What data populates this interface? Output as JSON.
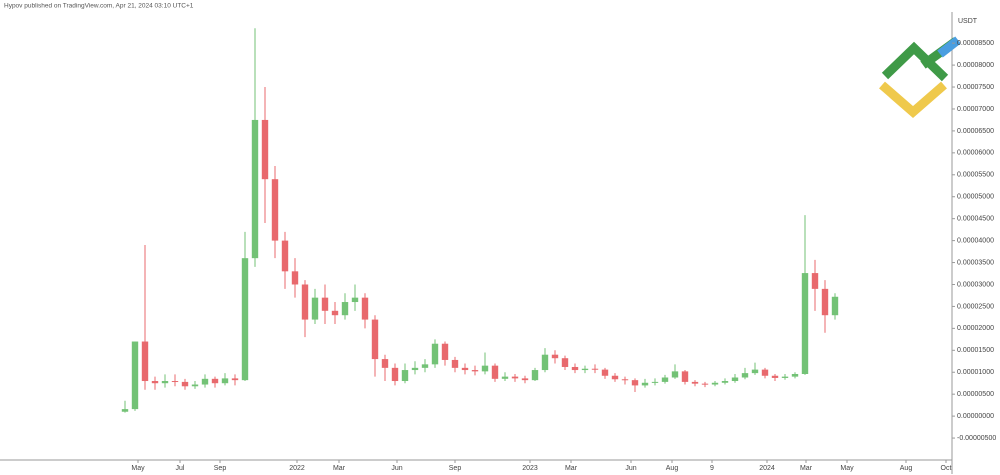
{
  "header": "Hypov published on TradingView.com, Apr 21, 2024 03:10 UTC+1",
  "chart_data": {
    "type": "candlestick",
    "unit_label": "USDT",
    "up_color": "#73c276",
    "down_color": "#e8696d",
    "ylim": [
      -1e-05,
      9.21e-05
    ],
    "yticks": [
      {
        "value": -5e-06,
        "label": "-0.00000500"
      },
      {
        "value": 0,
        "label": "0.00000000"
      },
      {
        "value": 5e-06,
        "label": "0.00000500"
      },
      {
        "value": 1e-05,
        "label": "0.00001000"
      },
      {
        "value": 1.5e-05,
        "label": "0.00001500"
      },
      {
        "value": 2e-05,
        "label": "0.00002000"
      },
      {
        "value": 2.5e-05,
        "label": "0.00002500"
      },
      {
        "value": 3e-05,
        "label": "0.00003000"
      },
      {
        "value": 3.5e-05,
        "label": "0.00003500"
      },
      {
        "value": 4e-05,
        "label": "0.00004000"
      },
      {
        "value": 4.5e-05,
        "label": "0.00004500"
      },
      {
        "value": 5e-05,
        "label": "0.00005000"
      },
      {
        "value": 5.5e-05,
        "label": "0.00005500"
      },
      {
        "value": 6e-05,
        "label": "0.00006000"
      },
      {
        "value": 6.5e-05,
        "label": "0.00006500"
      },
      {
        "value": 7e-05,
        "label": "0.00007000"
      },
      {
        "value": 7.5e-05,
        "label": "0.00007500"
      },
      {
        "value": 8e-05,
        "label": "0.00008000"
      },
      {
        "value": 8.5e-05,
        "label": "0.00008500"
      }
    ],
    "xlim": [
      -12.5,
      82.7
    ],
    "xticks": [
      {
        "value": 1.3,
        "label": "May"
      },
      {
        "value": 5.5,
        "label": "Jul"
      },
      {
        "value": 9.5,
        "label": "Sep"
      },
      {
        "value": 17.2,
        "label": "2022"
      },
      {
        "value": 21.4,
        "label": "Mar"
      },
      {
        "value": 27.2,
        "label": "Jun"
      },
      {
        "value": 33,
        "label": "Sep"
      },
      {
        "value": 40.5,
        "label": "2023"
      },
      {
        "value": 44.6,
        "label": "Mar"
      },
      {
        "value": 50.6,
        "label": "Jun"
      },
      {
        "value": 54.7,
        "label": "Aug"
      },
      {
        "value": 58.7,
        "label": "9"
      },
      {
        "value": 64.2,
        "label": "2024"
      },
      {
        "value": 68.1,
        "label": "Mar"
      },
      {
        "value": 72.2,
        "label": "May"
      },
      {
        "value": 78.1,
        "label": "Aug"
      },
      {
        "value": 82.1,
        "label": "Oct"
      }
    ],
    "open": [
      1e-06,
      1.6e-06,
      1.7e-05,
      8e-06,
      7.5e-06,
      8e-06,
      7.8e-06,
      6.8e-06,
      7.2e-06,
      8.5e-06,
      7.5e-06,
      8.6e-06,
      8.2e-06,
      3.6e-05,
      6.75e-05,
      5.4e-05,
      4e-05,
      3.3e-05,
      3e-05,
      2.2e-05,
      2.7e-05,
      2.4e-05,
      2.3e-05,
      2.6e-05,
      2.7e-05,
      2.2e-05,
      1.3e-05,
      1.1e-05,
      8e-06,
      1.05e-05,
      1.1e-05,
      1.18e-05,
      1.65e-05,
      1.28e-05,
      1.1e-05,
      1.05e-05,
      1.02e-05,
      1.15e-05,
      8.5e-06,
      9e-06,
      8.6e-06,
      8.2e-06,
      1.05e-05,
      1.4e-05,
      1.32e-05,
      1.12e-05,
      1.05e-05,
      1.08e-05,
      1.06e-05,
      9.2e-06,
      8.4e-06,
      8.2e-06,
      7e-06,
      7.6e-06,
      7.8e-06,
      8.8e-06,
      1.02e-05,
      7.8e-06,
      7.4e-06,
      7.2e-06,
      7.6e-06,
      8e-06,
      8.8e-06,
      9.8e-06,
      1.06e-05,
      9.2e-06,
      8.7e-06,
      9e-06,
      9.6e-06,
      3.26e-05,
      2.9e-05,
      2.3e-05
    ],
    "high": [
      3.5e-06,
      1.7e-05,
      3.9e-05,
      9e-06,
      9.5e-06,
      9.5e-06,
      8.5e-06,
      8e-06,
      9.5e-06,
      9e-06,
      9.8e-06,
      9.5e-06,
      4.2e-05,
      8.84e-05,
      7.5e-05,
      5.7e-05,
      4.2e-05,
      3.6e-05,
      3.1e-05,
      2.9e-05,
      3e-05,
      2.6e-05,
      2.8e-05,
      3e-05,
      2.8e-05,
      2.3e-05,
      1.4e-05,
      1.2e-05,
      1.2e-05,
      1.25e-05,
      1.3e-05,
      1.75e-05,
      1.7e-05,
      1.35e-05,
      1.2e-05,
      1.15e-05,
      1.45e-05,
      1.2e-05,
      1e-05,
      9.6e-06,
      9.2e-06,
      1.1e-05,
      1.55e-05,
      1.5e-05,
      1.38e-05,
      1.2e-05,
      1.15e-05,
      1.18e-05,
      1.1e-05,
      9.8e-06,
      9e-06,
      8.6e-06,
      8.5e-06,
      8.6e-06,
      9.4e-06,
      1.18e-05,
      1.05e-05,
      8.2e-06,
      7.8e-06,
      8e-06,
      8.6e-06,
      9.6e-06,
      1.1e-05,
      1.22e-05,
      1.1e-05,
      9.6e-06,
      9.6e-06,
      1e-05,
      4.58e-05,
      3.56e-05,
      3.1e-05,
      2.8e-05
    ],
    "low": [
      8e-07,
      1.2e-06,
      6e-06,
      6e-06,
      6.5e-06,
      6.8e-06,
      6e-06,
      6.2e-06,
      6.5e-06,
      6.5e-06,
      7e-06,
      7e-06,
      8e-06,
      3.4e-05,
      4.4e-05,
      3.6e-05,
      2.9e-05,
      2.7e-05,
      1.8e-05,
      2.1e-05,
      2.1e-05,
      2.1e-05,
      2.2e-05,
      2.4e-05,
      2e-05,
      9e-06,
      8e-06,
      7e-06,
      7.5e-06,
      9.5e-06,
      1e-05,
      1.1e-05,
      1.15e-05,
      1e-05,
      9.5e-06,
      9.3e-06,
      9.5e-06,
      7.8e-06,
      8e-06,
      7.8e-06,
      7.5e-06,
      8e-06,
      1e-05,
      1.2e-05,
      1.05e-05,
      9.8e-06,
      9.8e-06,
      9.8e-06,
      8.5e-06,
      7.8e-06,
      7.2e-06,
      5.5e-06,
      6.5e-06,
      7e-06,
      7.4e-06,
      8.5e-06,
      7.2e-06,
      6.8e-06,
      6.6e-06,
      6.8e-06,
      7.2e-06,
      7.6e-06,
      8.4e-06,
      9.4e-06,
      8.6e-06,
      8e-06,
      8.3e-06,
      8.6e-06,
      9.4e-06,
      2.4e-05,
      1.9e-05,
      2.2e-05
    ],
    "close": [
      1.6e-06,
      1.7e-05,
      8e-06,
      7.5e-06,
      8e-06,
      7.8e-06,
      6.8e-06,
      7.2e-06,
      8.5e-06,
      7.5e-06,
      8.6e-06,
      8.2e-06,
      3.6e-05,
      6.75e-05,
      5.4e-05,
      4e-05,
      3.3e-05,
      3e-05,
      2.2e-05,
      2.7e-05,
      2.4e-05,
      2.3e-05,
      2.6e-05,
      2.7e-05,
      2.2e-05,
      1.3e-05,
      1.1e-05,
      8e-06,
      1.05e-05,
      1.1e-05,
      1.18e-05,
      1.65e-05,
      1.28e-05,
      1.1e-05,
      1.05e-05,
      1.02e-05,
      1.15e-05,
      8.5e-06,
      9e-06,
      8.6e-06,
      8.2e-06,
      1.05e-05,
      1.4e-05,
      1.32e-05,
      1.12e-05,
      1.05e-05,
      1.08e-05,
      1.06e-05,
      9.2e-06,
      8.4e-06,
      8.2e-06,
      7e-06,
      7.6e-06,
      7.8e-06,
      8.8e-06,
      1.02e-05,
      7.8e-06,
      7.4e-06,
      7.2e-06,
      7.6e-06,
      8e-06,
      8.8e-06,
      9.8e-06,
      1.06e-05,
      9.2e-06,
      8.7e-06,
      9e-06,
      9.6e-06,
      3.26e-05,
      2.9e-05,
      2.3e-05,
      2.72e-05
    ]
  }
}
